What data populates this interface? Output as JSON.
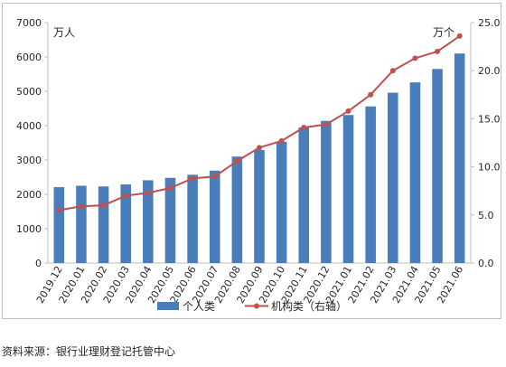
{
  "chart_data": {
    "type": "bar",
    "categories": [
      "2019.12",
      "2020.01",
      "2020.02",
      "2020.03",
      "2020.04",
      "2020.05",
      "2020.06",
      "2020.07",
      "2020.08",
      "2020.09",
      "2020.10",
      "2020.11",
      "2020.12",
      "2021.01",
      "2021.02",
      "2021.03",
      "2021.04",
      "2021.05",
      "2021.06"
    ],
    "series": [
      {
        "name": "个人类",
        "type": "bar",
        "axis": "left",
        "color": "#4a7ebb",
        "values": [
          2210,
          2250,
          2230,
          2290,
          2410,
          2480,
          2570,
          2690,
          3100,
          3290,
          3530,
          3950,
          4140,
          4310,
          4560,
          4960,
          5260,
          5650,
          6100
        ]
      },
      {
        "name": "机构类（右轴）",
        "type": "line",
        "axis": "right",
        "color": "#c0504d",
        "values": [
          5.5,
          5.9,
          6.0,
          7.0,
          7.3,
          7.8,
          8.8,
          9.0,
          10.6,
          12.0,
          12.7,
          14.1,
          14.4,
          15.8,
          17.5,
          20.0,
          21.3,
          22.0,
          23.6
        ]
      }
    ],
    "yaxis_left": {
      "unit": "万人",
      "min": 0,
      "max": 7000,
      "ticks": [
        0,
        1000,
        2000,
        3000,
        4000,
        5000,
        6000,
        7000
      ]
    },
    "yaxis_right": {
      "unit": "万个",
      "min": 0,
      "max": 25,
      "ticks": [
        "0.0",
        "5.0",
        "10.0",
        "15.0",
        "20.0",
        "25.0"
      ]
    },
    "grid": false,
    "legend": "bottom"
  },
  "source": "资料来源：银行业理财登记托管中心"
}
